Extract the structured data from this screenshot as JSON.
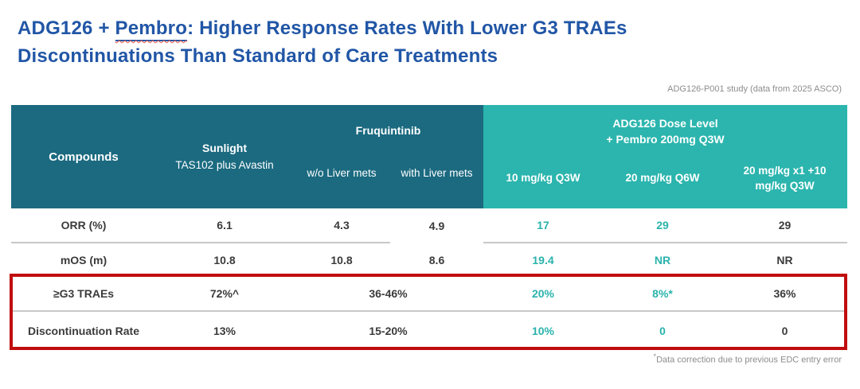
{
  "title": {
    "prefix": "ADG126 + ",
    "underlined": "Pembro",
    "suffix": ": Higher Response Rates With Lower G3 TRAEs",
    "line2": "Discontinuations Than Standard of Care Treatments"
  },
  "captions": {
    "study": "ADG126-P001 study (data from 2025 ASCO)",
    "footnote_marker": "*",
    "footnote": "Data correction due to previous EDC entry error"
  },
  "table": {
    "header": {
      "compounds": "Compounds",
      "sunlight_title": "Sunlight",
      "sunlight_sub": "TAS102 plus Avastin",
      "fruquintinib_title": "Fruquintinib",
      "fruq_col_without": "w/o Liver mets",
      "fruq_col_with": "with Liver mets",
      "adg_title_line1": "ADG126 Dose Level",
      "adg_title_line2": "+ Pembro 200mg Q3W",
      "adg_col_1": "10 mg/kg Q3W",
      "adg_col_2": "20 mg/kg Q6W",
      "adg_col_3": "20 mg/kg x1 +10 mg/kg Q3W"
    },
    "rows": [
      {
        "label": "ORR (%)",
        "sunlight": "6.1",
        "fruq_wo": "4.3",
        "fruq_with": "4.9",
        "adg_10": "17",
        "adg_20": "29",
        "adg_mix": "29"
      },
      {
        "label": "mOS (m)",
        "sunlight": "10.8",
        "fruq_wo": "10.8",
        "fruq_with": "8.6",
        "adg_10": "19.4",
        "adg_20": "NR",
        "adg_mix": "NR"
      },
      {
        "label": "≥G3 TRAEs",
        "sunlight": "72%^",
        "fruq_combined": "36-46%",
        "adg_10": "20%",
        "adg_20": "8%*",
        "adg_mix": "36%"
      },
      {
        "label": "Discontinuation Rate",
        "sunlight": "13%",
        "fruq_combined": "15-20%",
        "adg_10": "10%",
        "adg_20": "0",
        "adg_mix": "0"
      }
    ]
  },
  "colors": {
    "title_blue": "#2156a6",
    "header_dark_teal": "#1b6a80",
    "header_light_teal": "#2bb5ae",
    "accent_teal_text": "#2ab3ac",
    "highlight_red": "#c00d0d",
    "body_text": "#3b3b3b",
    "caption_gray": "#8c8c8c"
  }
}
